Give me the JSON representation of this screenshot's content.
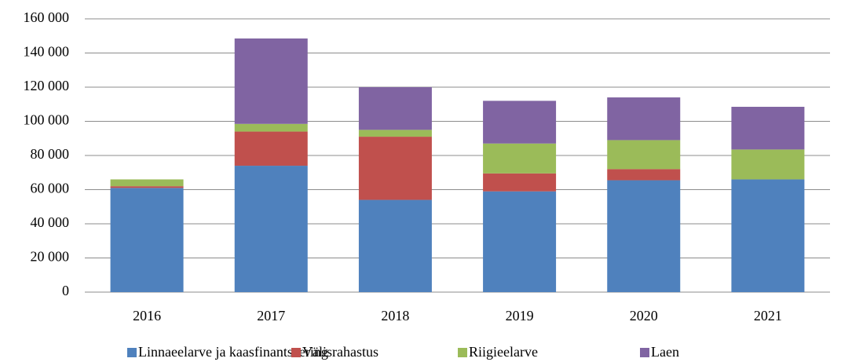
{
  "chart_data": {
    "type": "stacked_bar",
    "categories": [
      "2016",
      "2017",
      "2018",
      "2019",
      "2020",
      "2021"
    ],
    "series": [
      {
        "name": "Linnaeelarve ja kaasfinantseering",
        "color": "#4f81bd",
        "values": [
          61000,
          74000,
          54000,
          59000,
          65500,
          66000
        ]
      },
      {
        "name": "Välisrahastus",
        "color": "#c0504d",
        "values": [
          1000,
          20000,
          37000,
          10500,
          6500,
          0
        ]
      },
      {
        "name": "Riigieelarve",
        "color": "#9bbb59",
        "values": [
          4000,
          4500,
          4000,
          17500,
          17000,
          17500
        ]
      },
      {
        "name": "Laen",
        "color": "#8064a2",
        "values": [
          0,
          50000,
          25000,
          25000,
          25000,
          25000
        ]
      }
    ],
    "ylim": [
      0,
      160000
    ],
    "yticks": [
      0,
      {
        "value": 20000,
        "label": "20 000"
      },
      {
        "value": 40000,
        "label": "40 000"
      },
      {
        "value": 60000,
        "label": "60 000"
      },
      {
        "value": 80000,
        "label": "80 000"
      },
      {
        "value": 100000,
        "label": "100 000"
      },
      {
        "value": 120000,
        "label": "120 000"
      },
      {
        "value": 140000,
        "label": "140 000"
      },
      {
        "value": 160000,
        "label": "160 000"
      }
    ],
    "grid": true,
    "legend": "bottom"
  }
}
